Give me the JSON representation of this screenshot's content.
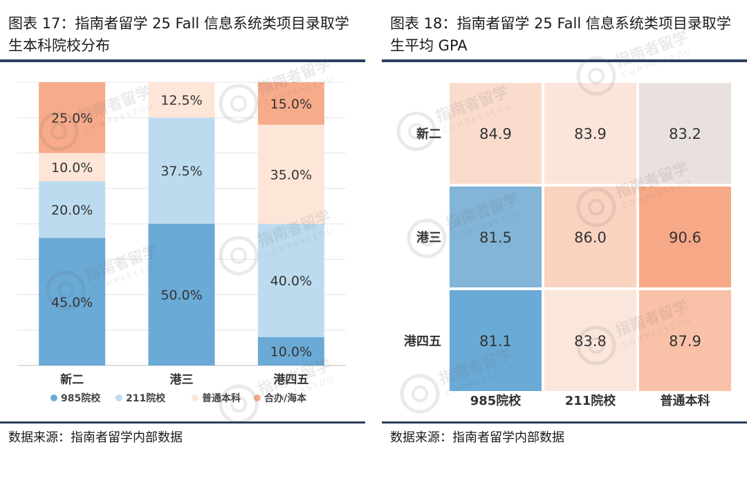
{
  "chart_data": [
    {
      "type": "bar",
      "stacked": true,
      "title": "图表 17：指南者留学 25 Fall 信息系统类项目录取学生本科院校分布",
      "categories": [
        "新二",
        "港三",
        "港四五"
      ],
      "series": [
        {
          "name": "985院校",
          "color": "#6aaad6",
          "values": [
            45.0,
            50.0,
            10.0
          ],
          "labels": [
            "45.0%",
            "50.0%",
            "10.0%"
          ]
        },
        {
          "name": "211院校",
          "color": "#bcdbef",
          "values": [
            20.0,
            37.5,
            40.0
          ],
          "labels": [
            "20.0%",
            "37.5%",
            "40.0%"
          ]
        },
        {
          "name": "普通本科",
          "color": "#fde6d8",
          "values": [
            10.0,
            12.5,
            35.0
          ],
          "labels": [
            "10.0%",
            "12.5%",
            "35.0%"
          ]
        },
        {
          "name": "合办/海本",
          "color": "#f7ab8a",
          "values": [
            25.0,
            0.0,
            15.0
          ],
          "labels": [
            "25.0%",
            "",
            "15.0%"
          ]
        }
      ],
      "ylim": [
        0,
        100
      ],
      "grid": true,
      "legend": "bottom",
      "source": "数据来源：指南者留学内部数据"
    },
    {
      "type": "heatmap",
      "title": "图表 18：指南者留学 25 Fall 信息系统类项目录取学生平均 GPA",
      "rows": [
        "新二",
        "港三",
        "港四五"
      ],
      "columns": [
        "985院校",
        "211院校",
        "普通本科"
      ],
      "values": [
        [
          84.9,
          83.9,
          83.2
        ],
        [
          81.5,
          86.0,
          90.6
        ],
        [
          81.1,
          83.8,
          87.9
        ]
      ],
      "labels": [
        [
          "84.9",
          "83.9",
          "83.2"
        ],
        [
          "81.5",
          "86.0",
          "90.6"
        ],
        [
          "81.1",
          "83.8",
          "87.9"
        ]
      ],
      "color_scale": [
        "#6aaad6",
        "#fbe9df",
        "#f7a886"
      ],
      "source": "数据来源：指南者留学内部数据"
    }
  ],
  "watermark": {
    "brand": "指南者留学",
    "latin": "COMPASSEDU"
  }
}
